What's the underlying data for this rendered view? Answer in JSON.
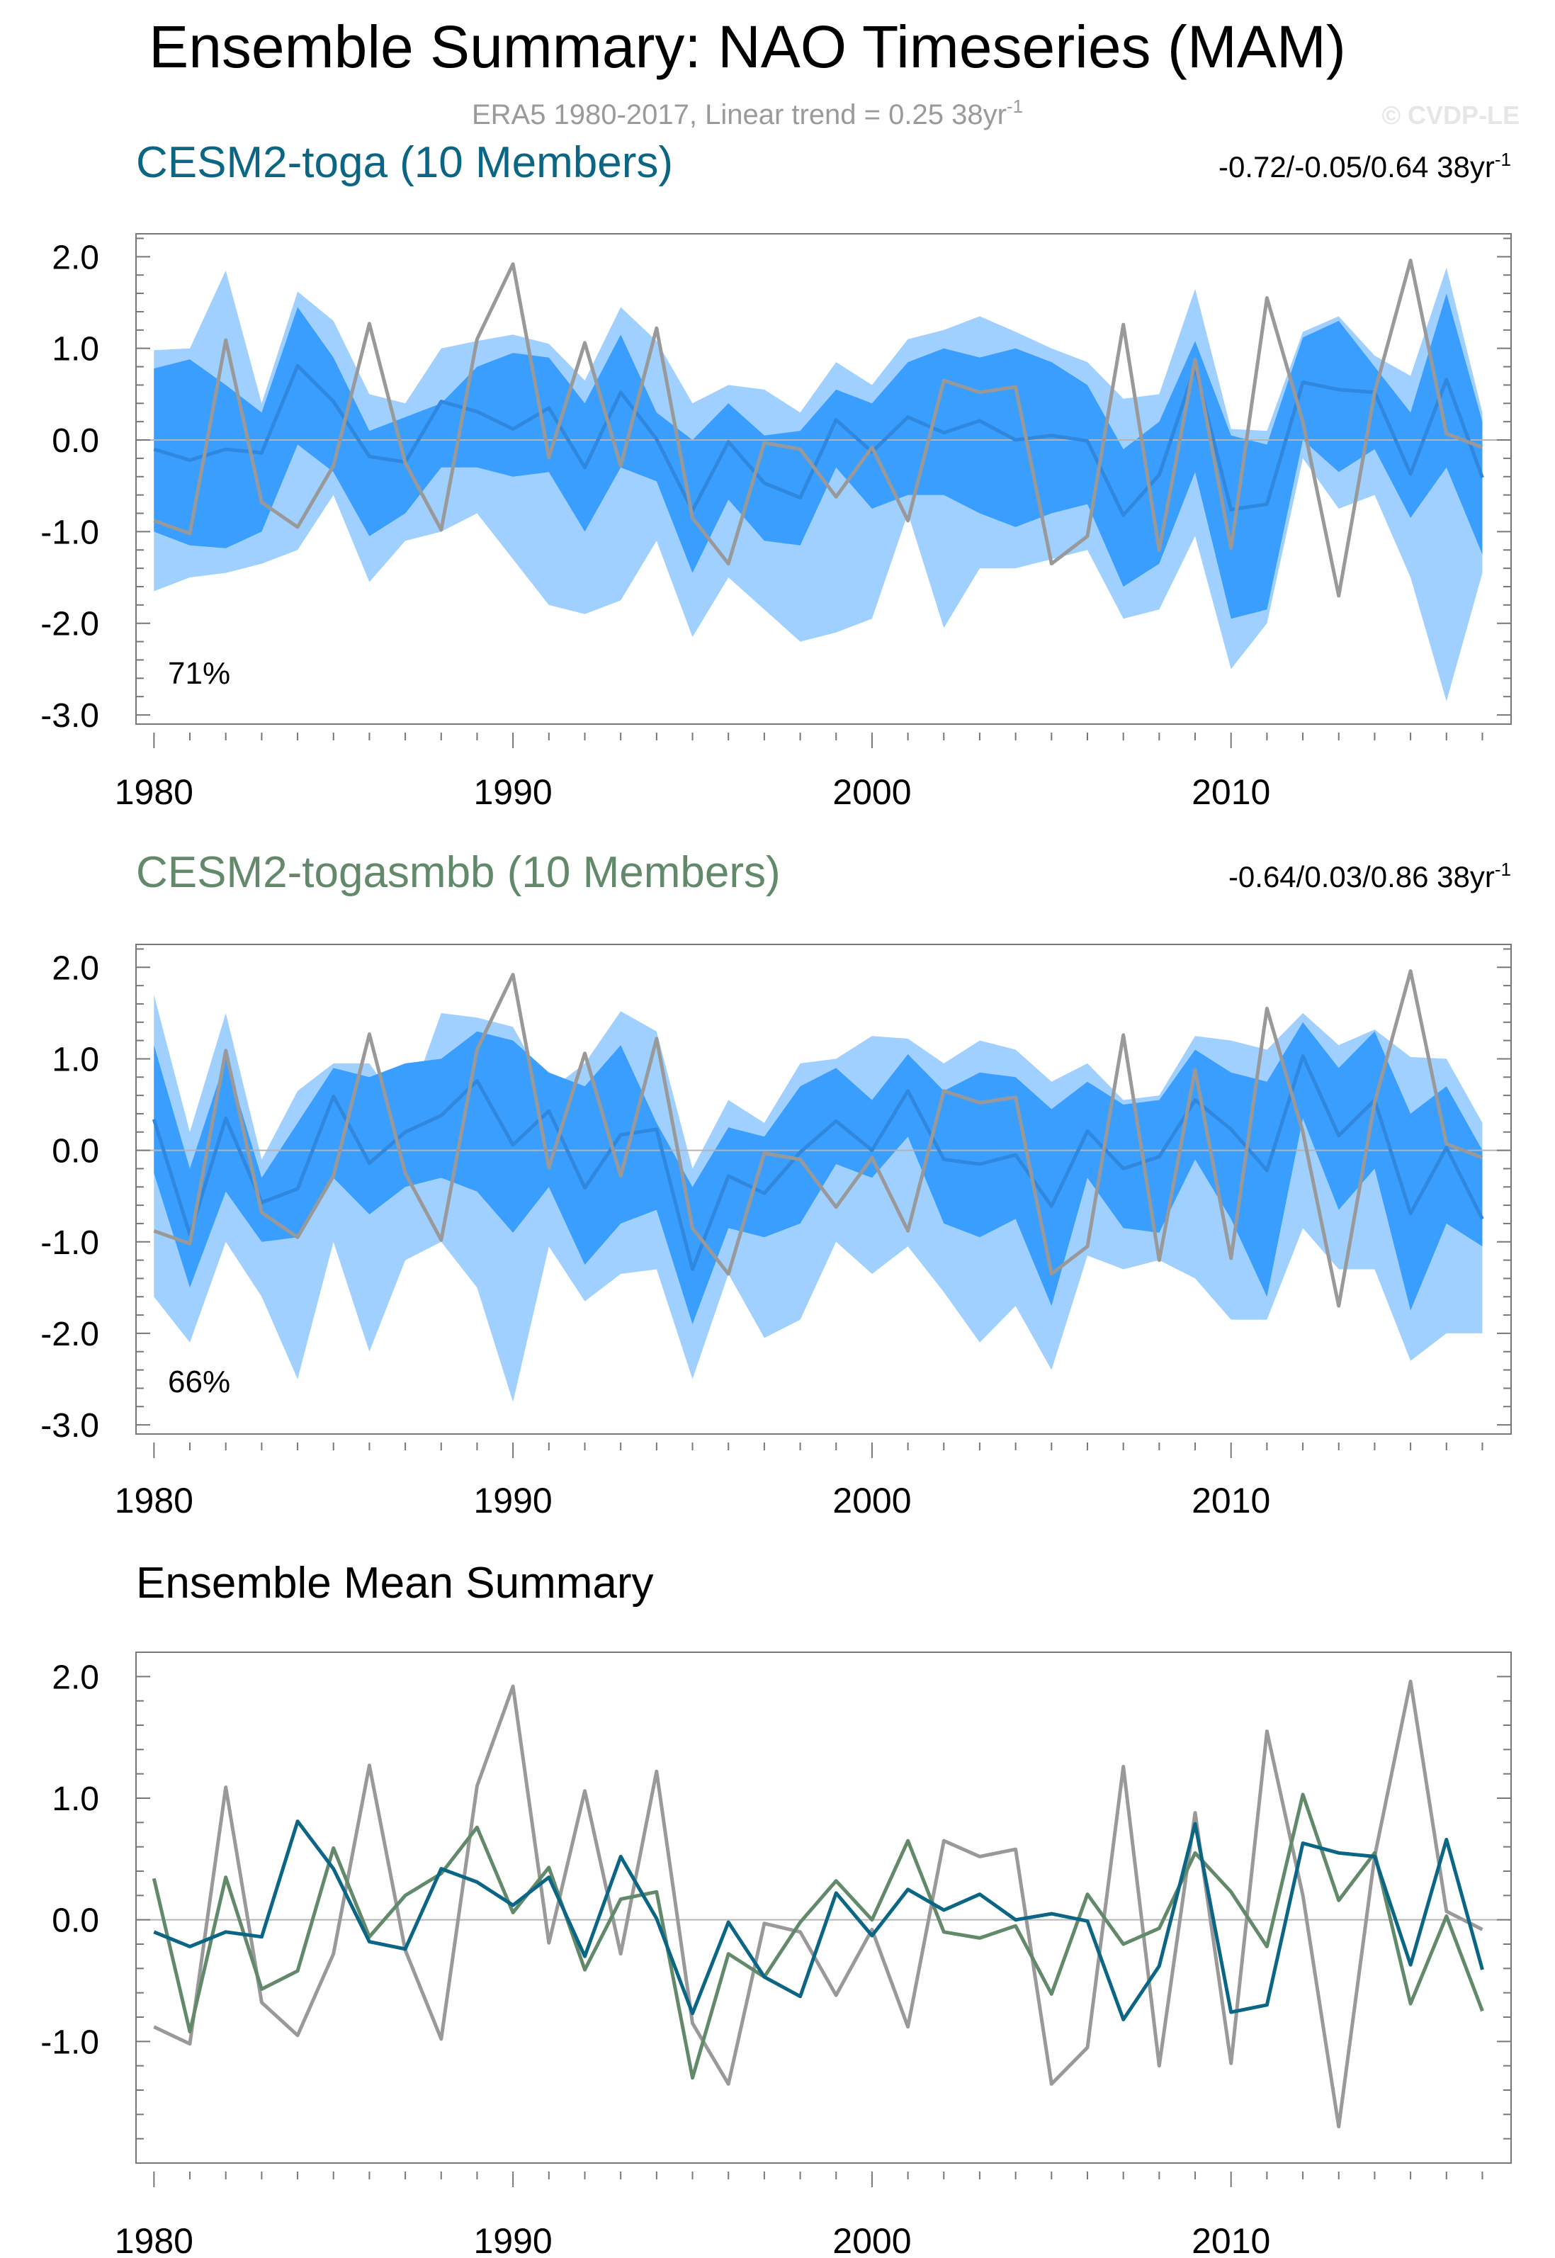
{
  "figure": {
    "title": "Ensemble Summary: NAO Timeseries (MAM)",
    "subtitle_text": "ERA5 1980-2017, Linear trend = 0.25 38yr",
    "subtitle_sup": "-1",
    "watermark": "© CVDP-LE"
  },
  "colors": {
    "obs": "#999999",
    "band_outer": "#9FD0FF",
    "band_inner": "#3A9EFF",
    "mean_panel": "#2F88DD",
    "toga": "#0B6584",
    "togasmbb": "#62896A",
    "subtitle": "#9a9a9a",
    "zero_line": "#b5b5b5"
  },
  "chart_data": [
    {
      "type": "area",
      "title": "CESM2-toga (10 Members)",
      "title_color": "#0B6584",
      "stats_text": "-0.72/-0.05/0.64 38yr",
      "stats_sup": "-1",
      "percent_label": "71%",
      "ylim": [
        -3.1,
        2.25
      ],
      "yticks": [
        2.0,
        1.0,
        0.0,
        -1.0,
        -2.0,
        -3.0
      ],
      "ytick_labels": [
        "2.0",
        "1.0",
        "0.0",
        "-1.0",
        "-2.0",
        "-3.0"
      ],
      "x": [
        1980,
        1981,
        1982,
        1983,
        1984,
        1985,
        1986,
        1987,
        1988,
        1989,
        1990,
        1991,
        1992,
        1993,
        1994,
        1995,
        1996,
        1997,
        1998,
        1999,
        2000,
        2001,
        2002,
        2003,
        2004,
        2005,
        2006,
        2007,
        2008,
        2009,
        2010,
        2011,
        2012,
        2013,
        2014,
        2015,
        2016,
        2017
      ],
      "xlim": [
        1979.5,
        2017.8
      ],
      "xticks": [
        1980,
        1990,
        2000,
        2010
      ],
      "xtick_labels": [
        "1980",
        "1990",
        "2000",
        "2010"
      ],
      "series": [
        {
          "name": "outer_upper",
          "values": [
            0.98,
            1.0,
            1.85,
            0.4,
            1.62,
            1.3,
            0.5,
            0.4,
            1.0,
            1.08,
            1.15,
            1.05,
            0.65,
            1.45,
            1.08,
            0.4,
            0.6,
            0.55,
            0.3,
            0.85,
            0.6,
            1.1,
            1.2,
            1.35,
            1.18,
            1.0,
            0.85,
            0.45,
            0.5,
            1.65,
            0.12,
            0.1,
            1.18,
            1.35,
            0.92,
            0.7,
            1.88,
            0.3
          ]
        },
        {
          "name": "inner_upper",
          "values": [
            0.78,
            0.88,
            0.6,
            0.3,
            1.45,
            0.9,
            0.1,
            0.25,
            0.4,
            0.8,
            0.95,
            0.9,
            0.4,
            1.15,
            0.3,
            0.0,
            0.4,
            0.05,
            0.1,
            0.55,
            0.4,
            0.85,
            1.0,
            0.9,
            1.0,
            0.85,
            0.6,
            -0.1,
            0.2,
            1.08,
            0.05,
            -0.05,
            1.12,
            1.3,
            0.8,
            0.3,
            1.6,
            0.2
          ]
        },
        {
          "name": "mean",
          "values": [
            -0.1,
            -0.22,
            -0.1,
            -0.14,
            0.81,
            0.42,
            -0.18,
            -0.24,
            0.42,
            0.31,
            0.12,
            0.35,
            -0.3,
            0.52,
            0.01,
            -0.77,
            -0.02,
            -0.47,
            -0.63,
            0.22,
            -0.13,
            0.25,
            0.08,
            0.21,
            0.0,
            0.05,
            -0.01,
            -0.82,
            -0.38,
            0.79,
            -0.76,
            -0.7,
            0.63,
            0.55,
            0.52,
            -0.37,
            0.66,
            -0.41
          ]
        },
        {
          "name": "inner_lower",
          "values": [
            -1.0,
            -1.15,
            -1.18,
            -1.0,
            -0.05,
            -0.35,
            -1.05,
            -0.8,
            -0.3,
            -0.3,
            -0.4,
            -0.35,
            -1.0,
            -0.3,
            -0.45,
            -1.45,
            -0.65,
            -1.1,
            -1.15,
            -0.3,
            -0.75,
            -0.6,
            -0.6,
            -0.8,
            -0.95,
            -0.8,
            -0.7,
            -1.6,
            -1.35,
            -0.35,
            -1.95,
            -1.85,
            0.0,
            -0.35,
            -0.1,
            -0.85,
            -0.3,
            -1.25
          ]
        },
        {
          "name": "outer_lower",
          "values": [
            -1.65,
            -1.5,
            -1.45,
            -1.35,
            -1.2,
            -0.6,
            -1.55,
            -1.1,
            -1.0,
            -0.8,
            -1.3,
            -1.8,
            -1.9,
            -1.75,
            -1.1,
            -2.15,
            -1.5,
            -1.85,
            -2.2,
            -2.1,
            -1.95,
            -0.8,
            -2.05,
            -1.4,
            -1.4,
            -1.3,
            -1.2,
            -1.95,
            -1.85,
            -1.05,
            -2.5,
            -2.0,
            -0.2,
            -0.75,
            -0.6,
            -1.5,
            -2.85,
            -1.45
          ]
        },
        {
          "name": "ERA5",
          "values": [
            -0.88,
            -1.02,
            1.09,
            -0.68,
            -0.95,
            -0.28,
            1.27,
            -0.25,
            -0.98,
            1.1,
            1.92,
            -0.19,
            1.06,
            -0.28,
            1.22,
            -0.85,
            -1.35,
            -0.03,
            -0.1,
            -0.62,
            -0.08,
            -0.88,
            0.65,
            0.52,
            0.58,
            -1.35,
            -1.05,
            1.26,
            -1.2,
            0.88,
            -1.18,
            1.55,
            0.2,
            -1.7,
            0.52,
            1.96,
            0.07,
            -0.08
          ]
        }
      ]
    },
    {
      "type": "area",
      "title": "CESM2-togasmbb (10 Members)",
      "title_color": "#62896A",
      "stats_text": "-0.64/0.03/0.86 38yr",
      "stats_sup": "-1",
      "percent_label": "66%",
      "ylim": [
        -3.1,
        2.25
      ],
      "yticks": [
        2.0,
        1.0,
        0.0,
        -1.0,
        -2.0,
        -3.0
      ],
      "ytick_labels": [
        "2.0",
        "1.0",
        "0.0",
        "-1.0",
        "-2.0",
        "-3.0"
      ],
      "x": [
        1980,
        1981,
        1982,
        1983,
        1984,
        1985,
        1986,
        1987,
        1988,
        1989,
        1990,
        1991,
        1992,
        1993,
        1994,
        1995,
        1996,
        1997,
        1998,
        1999,
        2000,
        2001,
        2002,
        2003,
        2004,
        2005,
        2006,
        2007,
        2008,
        2009,
        2010,
        2011,
        2012,
        2013,
        2014,
        2015,
        2016,
        2017
      ],
      "xlim": [
        1979.5,
        2017.8
      ],
      "xticks": [
        1980,
        1990,
        2000,
        2010
      ],
      "xtick_labels": [
        "1980",
        "1990",
        "2000",
        "2010"
      ],
      "series": [
        {
          "name": "outer_upper",
          "values": [
            1.7,
            0.2,
            1.5,
            -0.1,
            0.65,
            0.95,
            0.95,
            0.4,
            1.5,
            1.45,
            1.35,
            0.65,
            0.95,
            1.52,
            1.3,
            -0.2,
            0.55,
            0.3,
            0.95,
            1.0,
            1.25,
            1.22,
            0.95,
            1.2,
            1.1,
            0.75,
            0.95,
            0.55,
            0.6,
            1.25,
            1.2,
            1.1,
            1.5,
            1.15,
            1.32,
            1.02,
            1.0,
            0.3
          ]
        },
        {
          "name": "inner_upper",
          "values": [
            1.15,
            -0.2,
            1.0,
            -0.3,
            0.3,
            0.9,
            0.8,
            0.95,
            1.0,
            1.3,
            1.2,
            0.85,
            0.7,
            1.15,
            0.3,
            -0.4,
            0.25,
            0.15,
            0.7,
            0.9,
            0.55,
            1.05,
            0.65,
            0.85,
            0.8,
            0.45,
            0.75,
            0.5,
            0.55,
            1.1,
            0.85,
            0.75,
            1.4,
            0.9,
            1.3,
            0.4,
            0.7,
            0.0
          ]
        },
        {
          "name": "mean",
          "values": [
            0.34,
            -0.92,
            0.35,
            -0.57,
            -0.42,
            0.59,
            -0.14,
            0.2,
            0.38,
            0.76,
            0.06,
            0.43,
            -0.41,
            0.17,
            0.23,
            -1.3,
            -0.28,
            -0.47,
            -0.02,
            0.32,
            0.0,
            0.65,
            -0.1,
            -0.15,
            -0.05,
            -0.61,
            0.21,
            -0.2,
            -0.07,
            0.55,
            0.23,
            -0.22,
            1.03,
            0.16,
            0.55,
            -0.69,
            0.03,
            -0.75
          ]
        },
        {
          "name": "inner_lower",
          "values": [
            -0.25,
            -1.5,
            -0.45,
            -1.0,
            -0.95,
            -0.3,
            -0.7,
            -0.4,
            -0.3,
            -0.45,
            -0.9,
            -0.4,
            -1.25,
            -0.8,
            -0.65,
            -1.9,
            -0.85,
            -0.95,
            -0.8,
            -0.15,
            -0.3,
            0.15,
            -0.8,
            -0.95,
            -0.75,
            -1.7,
            -0.3,
            -0.85,
            -0.9,
            -0.1,
            -0.75,
            -1.6,
            0.35,
            -0.65,
            -0.2,
            -1.75,
            -0.8,
            -1.05
          ]
        },
        {
          "name": "outer_lower",
          "values": [
            -1.6,
            -2.1,
            -1.0,
            -1.6,
            -2.5,
            -1.0,
            -2.2,
            -1.2,
            -1.0,
            -1.5,
            -2.75,
            -1.05,
            -1.65,
            -1.35,
            -1.3,
            -2.5,
            -1.35,
            -2.05,
            -1.85,
            -1.0,
            -1.35,
            -1.05,
            -1.55,
            -2.1,
            -1.7,
            -2.4,
            -1.15,
            -1.3,
            -1.2,
            -1.4,
            -1.85,
            -1.85,
            -0.85,
            -1.3,
            -1.3,
            -2.3,
            -2.0,
            -2.0
          ]
        },
        {
          "name": "ERA5",
          "values": [
            -0.88,
            -1.02,
            1.09,
            -0.68,
            -0.95,
            -0.28,
            1.27,
            -0.25,
            -0.98,
            1.1,
            1.92,
            -0.19,
            1.06,
            -0.28,
            1.22,
            -0.85,
            -1.35,
            -0.03,
            -0.1,
            -0.62,
            -0.08,
            -0.88,
            0.65,
            0.52,
            0.58,
            -1.35,
            -1.05,
            1.26,
            -1.2,
            0.88,
            -1.18,
            1.55,
            0.2,
            -1.7,
            0.52,
            1.96,
            0.07,
            -0.08
          ]
        }
      ]
    },
    {
      "type": "line",
      "title": "Ensemble Mean Summary",
      "title_color": "#000000",
      "ylim": [
        -2.0,
        2.2
      ],
      "yticks": [
        2.0,
        1.0,
        0.0,
        -1.0
      ],
      "ytick_labels": [
        "2.0",
        "1.0",
        "0.0",
        "-1.0"
      ],
      "x": [
        1980,
        1981,
        1982,
        1983,
        1984,
        1985,
        1986,
        1987,
        1988,
        1989,
        1990,
        1991,
        1992,
        1993,
        1994,
        1995,
        1996,
        1997,
        1998,
        1999,
        2000,
        2001,
        2002,
        2003,
        2004,
        2005,
        2006,
        2007,
        2008,
        2009,
        2010,
        2011,
        2012,
        2013,
        2014,
        2015,
        2016,
        2017
      ],
      "xlim": [
        1979.5,
        2017.8
      ],
      "xticks": [
        1980,
        1990,
        2000,
        2010
      ],
      "xtick_labels": [
        "1980",
        "1990",
        "2000",
        "2010"
      ],
      "series": [
        {
          "name": "ERA5",
          "color": "#999999",
          "values": [
            -0.88,
            -1.02,
            1.09,
            -0.68,
            -0.95,
            -0.28,
            1.27,
            -0.25,
            -0.98,
            1.1,
            1.92,
            -0.19,
            1.06,
            -0.28,
            1.22,
            -0.85,
            -1.35,
            -0.03,
            -0.1,
            -0.62,
            -0.08,
            -0.88,
            0.65,
            0.52,
            0.58,
            -1.35,
            -1.05,
            1.26,
            -1.2,
            0.88,
            -1.18,
            1.55,
            0.2,
            -1.7,
            0.52,
            1.96,
            0.07,
            -0.08
          ]
        },
        {
          "name": "CESM2-togasmbb",
          "color": "#62896A",
          "values": [
            0.34,
            -0.92,
            0.35,
            -0.57,
            -0.42,
            0.59,
            -0.14,
            0.2,
            0.38,
            0.76,
            0.06,
            0.43,
            -0.41,
            0.17,
            0.23,
            -1.3,
            -0.28,
            -0.47,
            -0.02,
            0.32,
            0.0,
            0.65,
            -0.1,
            -0.15,
            -0.05,
            -0.61,
            0.21,
            -0.2,
            -0.07,
            0.55,
            0.23,
            -0.22,
            1.03,
            0.16,
            0.55,
            -0.69,
            0.03,
            -0.75
          ]
        },
        {
          "name": "CESM2-toga",
          "color": "#0B6584",
          "values": [
            -0.1,
            -0.22,
            -0.1,
            -0.14,
            0.81,
            0.42,
            -0.18,
            -0.24,
            0.42,
            0.31,
            0.12,
            0.35,
            -0.3,
            0.52,
            0.01,
            -0.77,
            -0.02,
            -0.47,
            -0.63,
            0.22,
            -0.13,
            0.25,
            0.08,
            0.21,
            0.0,
            0.05,
            -0.01,
            -0.82,
            -0.38,
            0.79,
            -0.76,
            -0.7,
            0.63,
            0.55,
            0.52,
            -0.37,
            0.66,
            -0.41
          ]
        }
      ]
    }
  ]
}
